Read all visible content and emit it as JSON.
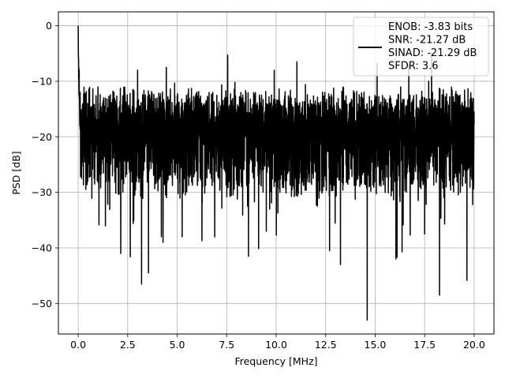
{
  "chart_data": {
    "type": "line",
    "title": "",
    "xlabel": "Frequency [MHz]",
    "ylabel": "PSD [dB]",
    "xlim": [
      -1.0,
      21.0
    ],
    "ylim": [
      -55.5,
      2.5
    ],
    "xticks": [
      0.0,
      2.5,
      5.0,
      7.5,
      10.0,
      12.5,
      15.0,
      17.5,
      20.0
    ],
    "xtick_labels": [
      "0.0",
      "2.5",
      "5.0",
      "7.5",
      "10.0",
      "12.5",
      "15.0",
      "17.5",
      "20.0"
    ],
    "yticks": [
      0,
      -10,
      -20,
      -30,
      -40,
      -50
    ],
    "ytick_labels": [
      "0",
      "−10",
      "−20",
      "−30",
      "−40",
      "−50"
    ],
    "grid": true,
    "legend": {
      "placement": "upper right",
      "lines": [
        "ENOB: -3.83 bits",
        "SNR: -21.27 dB",
        "SINAD: -21.29 dB",
        "SFDR: 3.6"
      ]
    },
    "series": [
      {
        "color": "#000000",
        "x_range": [
          0.0,
          20.0
        ],
        "num_points": 4000,
        "noise_floor_mean_db": -20.0,
        "noise_ceiling_typical_db": -12.0,
        "noise_floor_typical_db": -29.0,
        "peaks": [
          {
            "x": 0.0,
            "y": 0.0
          },
          {
            "x": 0.05,
            "y": -8.0
          },
          {
            "x": 0.1,
            "y": -12.0
          },
          {
            "x": 1.0,
            "y": -11.0
          },
          {
            "x": 7.55,
            "y": -5.3
          },
          {
            "x": 3.0,
            "y": -8.0
          },
          {
            "x": 4.45,
            "y": -7.5
          },
          {
            "x": 11.05,
            "y": -6.5
          },
          {
            "x": 15.1,
            "y": -6.8
          },
          {
            "x": 17.85,
            "y": -5.0
          },
          {
            "x": 9.9,
            "y": -8.0
          },
          {
            "x": 16.7,
            "y": -7.0
          }
        ],
        "dips": [
          {
            "x": 14.6,
            "y": -53.0
          },
          {
            "x": 3.2,
            "y": -46.5
          },
          {
            "x": 3.55,
            "y": -44.5
          },
          {
            "x": 18.25,
            "y": -48.5
          },
          {
            "x": 2.15,
            "y": -41.0
          },
          {
            "x": 8.6,
            "y": -41.5
          },
          {
            "x": 12.7,
            "y": -40.5
          },
          {
            "x": 13.25,
            "y": -43.0
          },
          {
            "x": 16.05,
            "y": -42.0
          },
          {
            "x": 4.2,
            "y": -38.0
          },
          {
            "x": 5.25,
            "y": -38.0
          },
          {
            "x": 9.5,
            "y": -37.0
          },
          {
            "x": 17.5,
            "y": -37.5
          }
        ]
      }
    ]
  }
}
